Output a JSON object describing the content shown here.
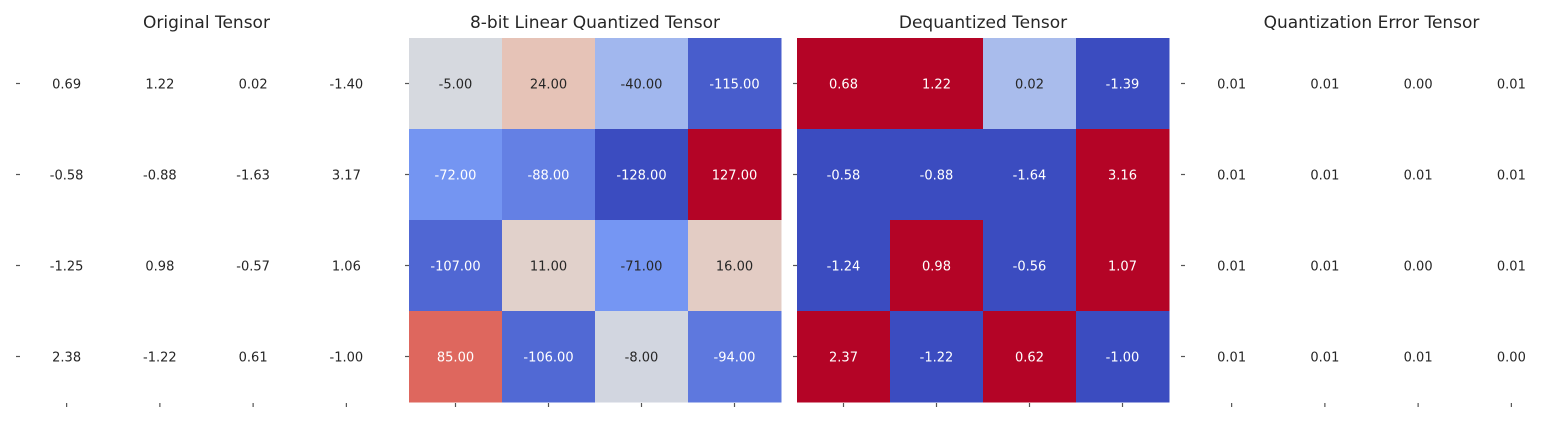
{
  "chart_data": [
    {
      "type": "heatmap",
      "title": "Original Tensor",
      "colored": false,
      "cells": [
        [
          "0.69",
          "1.22",
          "0.02",
          "-1.40"
        ],
        [
          "-0.58",
          "-0.88",
          "-1.63",
          "3.17"
        ],
        [
          "-1.25",
          "0.98",
          "-0.57",
          "1.06"
        ],
        [
          "2.38",
          "-1.22",
          "0.61",
          "-1.00"
        ]
      ],
      "values": [
        [
          0.69,
          1.22,
          0.02,
          -1.4
        ],
        [
          -0.58,
          -0.88,
          -1.63,
          3.17
        ],
        [
          -1.25,
          0.98,
          -0.57,
          1.06
        ],
        [
          2.38,
          -1.22,
          0.61,
          -1.0
        ]
      ],
      "grid": false
    },
    {
      "type": "heatmap",
      "title": "8-bit Linear Quantized Tensor",
      "colored": true,
      "colormap": "coolwarm",
      "vlim": [
        -128,
        127
      ],
      "cells": [
        [
          "-5.00",
          "24.00",
          "-40.00",
          "-115.00"
        ],
        [
          "-72.00",
          "-88.00",
          "-128.00",
          "127.00"
        ],
        [
          "-107.00",
          "11.00",
          "-71.00",
          "16.00"
        ],
        [
          "85.00",
          "-106.00",
          "-8.00",
          "-94.00"
        ]
      ],
      "values": [
        [
          -5,
          24,
          -40,
          -115
        ],
        [
          -72,
          -88,
          -128,
          127
        ],
        [
          -107,
          11,
          -71,
          16
        ],
        [
          85,
          -106,
          -8,
          -94
        ]
      ],
      "grid": false
    },
    {
      "type": "heatmap",
      "title": "Dequantized Tensor",
      "colored": true,
      "colormap": "coolwarm",
      "vlim": [
        -0.2,
        0.4
      ],
      "cells": [
        [
          "0.68",
          "1.22",
          "0.02",
          "-1.39"
        ],
        [
          "-0.58",
          "-0.88",
          "-1.64",
          "3.16"
        ],
        [
          "-1.24",
          "0.98",
          "-0.56",
          "1.07"
        ],
        [
          "2.37",
          "-1.22",
          "0.62",
          "-1.00"
        ]
      ],
      "values": [
        [
          0.68,
          1.22,
          0.02,
          -1.39
        ],
        [
          -0.58,
          -0.88,
          -1.64,
          3.16
        ],
        [
          -1.24,
          0.98,
          -0.56,
          1.07
        ],
        [
          2.37,
          -1.22,
          0.62,
          -1.0
        ]
      ],
      "grid": false
    },
    {
      "type": "heatmap",
      "title": "Quantization Error Tensor",
      "colored": false,
      "cells": [
        [
          "0.01",
          "0.01",
          "0.00",
          "0.01"
        ],
        [
          "0.01",
          "0.01",
          "0.01",
          "0.01"
        ],
        [
          "0.01",
          "0.01",
          "0.00",
          "0.01"
        ],
        [
          "0.01",
          "0.01",
          "0.01",
          "0.00"
        ]
      ],
      "values": [
        [
          0.01,
          0.01,
          0.0,
          0.01
        ],
        [
          0.01,
          0.01,
          0.01,
          0.01
        ],
        [
          0.01,
          0.01,
          0.0,
          0.01
        ],
        [
          0.01,
          0.01,
          0.01,
          0.0
        ]
      ],
      "grid": false
    }
  ],
  "colors": {
    "text_dark": "#262626",
    "text_light": "#ffffff",
    "tick": "#555555"
  }
}
